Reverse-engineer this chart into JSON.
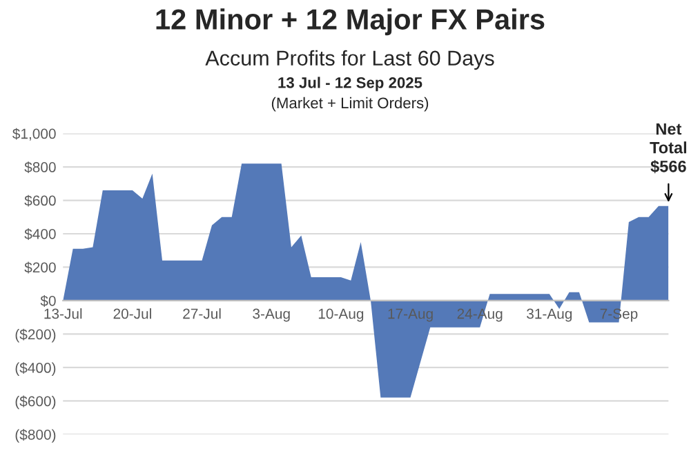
{
  "chart_data": {
    "type": "area",
    "title": "12 Minor + 12 Major FX Pairs",
    "subtitle": "Accum Profits for Last 60 Days",
    "annotations": [
      "13 Jul - 12 Sep 2025",
      "(Market + Limit Orders)",
      {
        "text": "Net\nTotal\n$566",
        "x": "2025-09-12",
        "y": 566
      }
    ],
    "x": [
      "2025-07-13",
      "2025-07-14",
      "2025-07-15",
      "2025-07-16",
      "2025-07-17",
      "2025-07-18",
      "2025-07-19",
      "2025-07-20",
      "2025-07-21",
      "2025-07-22",
      "2025-07-23",
      "2025-07-24",
      "2025-07-25",
      "2025-07-26",
      "2025-07-27",
      "2025-07-28",
      "2025-07-29",
      "2025-07-30",
      "2025-07-31",
      "2025-08-01",
      "2025-08-02",
      "2025-08-03",
      "2025-08-04",
      "2025-08-05",
      "2025-08-06",
      "2025-08-07",
      "2025-08-08",
      "2025-08-09",
      "2025-08-10",
      "2025-08-11",
      "2025-08-12",
      "2025-08-13",
      "2025-08-14",
      "2025-08-15",
      "2025-08-16",
      "2025-08-17",
      "2025-08-18",
      "2025-08-19",
      "2025-08-20",
      "2025-08-21",
      "2025-08-22",
      "2025-08-23",
      "2025-08-24",
      "2025-08-25",
      "2025-08-26",
      "2025-08-27",
      "2025-08-28",
      "2025-08-29",
      "2025-08-30",
      "2025-08-31",
      "2025-09-01",
      "2025-09-02",
      "2025-09-03",
      "2025-09-04",
      "2025-09-05",
      "2025-09-06",
      "2025-09-07",
      "2025-09-08",
      "2025-09-09",
      "2025-09-10",
      "2025-09-11",
      "2025-09-12"
    ],
    "series": [
      {
        "color": "#5479b8",
        "values": [
          0,
          310,
          310,
          320,
          660,
          660,
          660,
          660,
          610,
          760,
          240,
          240,
          240,
          240,
          240,
          450,
          500,
          500,
          820,
          820,
          820,
          820,
          820,
          320,
          390,
          140,
          140,
          140,
          140,
          120,
          350,
          0,
          -580,
          -580,
          -580,
          -580,
          -370,
          -160,
          -160,
          -160,
          -160,
          -160,
          -160,
          40,
          40,
          40,
          40,
          40,
          40,
          40,
          -50,
          50,
          50,
          -130,
          -130,
          -130,
          -130,
          470,
          500,
          500,
          566,
          566
        ]
      }
    ],
    "xlim": [
      "2025-07-13",
      "2025-09-12"
    ],
    "xticks": [
      {
        "value": "2025-07-13",
        "label": "13-Jul"
      },
      {
        "value": "2025-07-20",
        "label": "20-Jul"
      },
      {
        "value": "2025-07-27",
        "label": "27-Jul"
      },
      {
        "value": "2025-08-03",
        "label": "3-Aug"
      },
      {
        "value": "2025-08-10",
        "label": "10-Aug"
      },
      {
        "value": "2025-08-17",
        "label": "17-Aug"
      },
      {
        "value": "2025-08-24",
        "label": "24-Aug"
      },
      {
        "value": "2025-08-31",
        "label": "31-Aug"
      },
      {
        "value": "2025-09-07",
        "label": "7-Sep"
      }
    ],
    "ylim": [
      -800,
      1000
    ],
    "yticks": [
      {
        "value": -800,
        "label": "($800)"
      },
      {
        "value": -600,
        "label": "($600)"
      },
      {
        "value": -400,
        "label": "($400)"
      },
      {
        "value": -200,
        "label": "($200)"
      },
      {
        "value": 0,
        "label": "$0"
      },
      {
        "value": 200,
        "label": "$200"
      },
      {
        "value": 400,
        "label": "$400"
      },
      {
        "value": 600,
        "label": "$600"
      },
      {
        "value": 800,
        "label": "$800"
      },
      {
        "value": 1000,
        "label": "$1,000"
      }
    ],
    "grid": "y",
    "legend": false
  }
}
